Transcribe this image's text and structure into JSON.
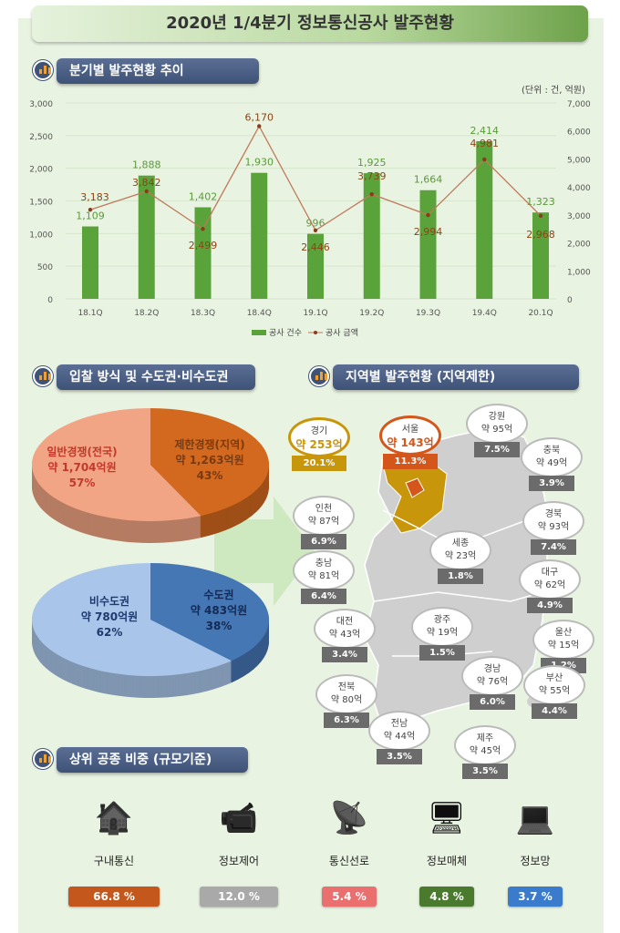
{
  "title": "2020년 1/4분기 정보통신공사 발주현황",
  "sections": {
    "trend": "분기별 발주현황 추이",
    "bid": "입찰 방식 및 수도권·비수도권",
    "region": "지역별 발주현황 (지역제한)",
    "top": "상위 공종 비중 (규모기준)"
  },
  "chart_data": [
    {
      "type": "bar+line",
      "unit_label": "(단위 : 건, 억원)",
      "categories": [
        "18.1Q",
        "18.2Q",
        "18.3Q",
        "18.4Q",
        "19.1Q",
        "19.2Q",
        "19.3Q",
        "19.4Q",
        "20.1Q"
      ],
      "series": [
        {
          "name": "공사 건수",
          "type": "bar",
          "axis": "left",
          "values": [
            1109,
            1888,
            1402,
            1930,
            996,
            1925,
            1664,
            2414,
            1323
          ],
          "labels": [
            "1,109",
            "1,888",
            "1,402",
            "1,930",
            "996",
            "1,925",
            "1,664",
            "2,414",
            "1,323"
          ],
          "color": "#5aa33a"
        },
        {
          "name": "공사 금액",
          "type": "line",
          "axis": "right",
          "values": [
            3183,
            3842,
            2499,
            6170,
            2446,
            3739,
            2994,
            4981,
            2968
          ],
          "labels": [
            "3,183",
            "3,842",
            "2,499",
            "6,170",
            "2,446",
            "3,739",
            "2,994",
            "4,981",
            "2,968"
          ],
          "color": "#a0522d"
        }
      ],
      "ylim_left": [
        0,
        3000
      ],
      "yticks_left": [
        "0",
        "500",
        "1,000",
        "1,500",
        "2,000",
        "2,500",
        "3,000"
      ],
      "ylim_right": [
        0,
        7000
      ],
      "yticks_right": [
        "0",
        "1,000",
        "2,000",
        "3,000",
        "4,000",
        "5,000",
        "6,000",
        "7,000"
      ],
      "grid": true,
      "legend": "bottom"
    },
    {
      "type": "pie",
      "slices": [
        {
          "name": "일반경쟁(전국)",
          "amount": "약 1,704억원",
          "pct": 57,
          "pct_label": "57%",
          "color": "#f1a584"
        },
        {
          "name": "제한경쟁(지역)",
          "amount": "약 1,263억원",
          "pct": 43,
          "pct_label": "43%",
          "color": "#d2691e"
        }
      ]
    },
    {
      "type": "pie",
      "slices": [
        {
          "name": "비수도권",
          "amount": "약 780억원",
          "pct": 62,
          "pct_label": "62%",
          "color": "#a9c6ea"
        },
        {
          "name": "수도권",
          "amount": "약 483억원",
          "pct": 38,
          "pct_label": "38%",
          "color": "#4677b5"
        }
      ]
    }
  ],
  "regions": [
    {
      "name": "경기",
      "amount": "약 253억",
      "pct": "20.1%",
      "color": "#c8960a"
    },
    {
      "name": "서울",
      "amount": "약 143억",
      "pct": "11.3%",
      "color": "#d4561a"
    },
    {
      "name": "강원",
      "amount": "약 95억",
      "pct": "7.5%"
    },
    {
      "name": "충북",
      "amount": "약 49억",
      "pct": "3.9%"
    },
    {
      "name": "인천",
      "amount": "약 87억",
      "pct": "6.9%"
    },
    {
      "name": "경북",
      "amount": "약 93억",
      "pct": "7.4%"
    },
    {
      "name": "세종",
      "amount": "약 23억",
      "pct": "1.8%"
    },
    {
      "name": "충남",
      "amount": "약 81억",
      "pct": "6.4%"
    },
    {
      "name": "대구",
      "amount": "약 62억",
      "pct": "4.9%"
    },
    {
      "name": "대전",
      "amount": "약 43억",
      "pct": "3.4%"
    },
    {
      "name": "광주",
      "amount": "약 19억",
      "pct": "1.5%"
    },
    {
      "name": "울산",
      "amount": "약 15억",
      "pct": "1.2%"
    },
    {
      "name": "경남",
      "amount": "약 76억",
      "pct": "6.0%"
    },
    {
      "name": "부산",
      "amount": "약 55억",
      "pct": "4.4%"
    },
    {
      "name": "전북",
      "amount": "약 80억",
      "pct": "6.3%"
    },
    {
      "name": "전남",
      "amount": "약 44억",
      "pct": "3.5%"
    },
    {
      "name": "제주",
      "amount": "약 45억",
      "pct": "3.5%"
    }
  ],
  "works": [
    {
      "name": "구내통신",
      "pct": "66.8 %",
      "color": "#c4571b",
      "icon": "building-network-icon"
    },
    {
      "name": "정보제어",
      "pct": "12.0 %",
      "color": "#a9a9a9",
      "icon": "cctv-icon"
    },
    {
      "name": "통신선로",
      "pct": "5.4 %",
      "color": "#ea6f6f",
      "icon": "router-line-icon"
    },
    {
      "name": "정보매체",
      "pct": "4.8 %",
      "color": "#4a7a2e",
      "icon": "monitor-icon"
    },
    {
      "name": "정보망",
      "pct": "3.7 %",
      "color": "#3b7bcc",
      "icon": "network-computers-icon"
    }
  ]
}
